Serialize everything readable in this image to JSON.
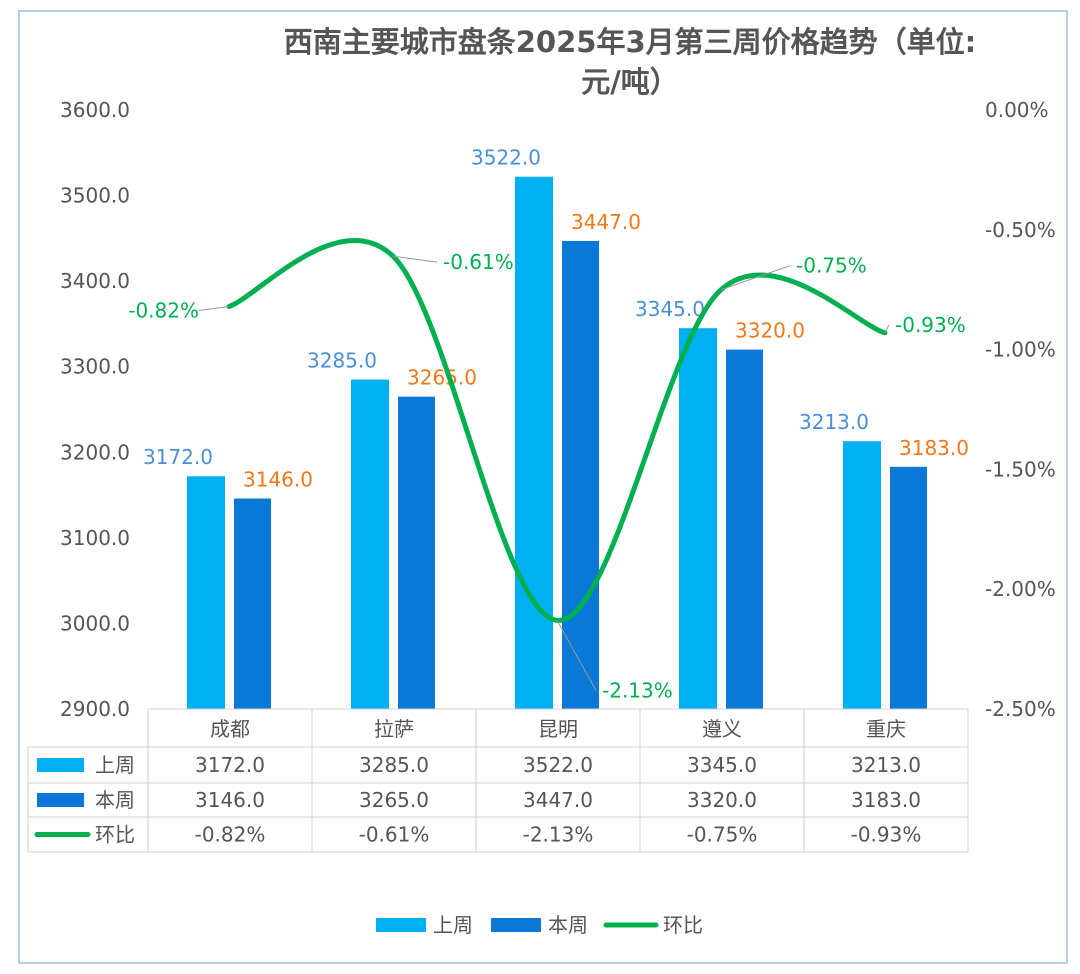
{
  "chart_data": {
    "type": "bar",
    "title_line1": "西南主要城市盘条2025年3月第三周价格趋势（单位:",
    "title_line2": "元/吨）",
    "categories": [
      "成都",
      "拉萨",
      "昆明",
      "遵义",
      "重庆"
    ],
    "series": [
      {
        "name": "上周",
        "type": "bar",
        "axis": "left",
        "color": "#00b0f0",
        "values": [
          3172.0,
          3285.0,
          3522.0,
          3345.0,
          3213.0
        ],
        "labels": [
          "3172.0",
          "3285.0",
          "3522.0",
          "3345.0",
          "3213.0"
        ],
        "label_color": "#4a8fd8"
      },
      {
        "name": "本周",
        "type": "bar",
        "axis": "left",
        "color": "#0a78d6",
        "values": [
          3146.0,
          3265.0,
          3447.0,
          3320.0,
          3183.0
        ],
        "labels": [
          "3146.0",
          "3265.0",
          "3447.0",
          "3320.0",
          "3183.0"
        ],
        "label_color": "#f07818"
      },
      {
        "name": "环比",
        "type": "line",
        "axis": "right",
        "color": "#00b050",
        "values": [
          -0.82,
          -0.61,
          -2.13,
          -0.75,
          -0.93
        ],
        "labels": [
          "-0.82%",
          "-0.61%",
          "-2.13%",
          "-0.75%",
          "-0.93%"
        ],
        "label_color": "#00b050"
      }
    ],
    "left_axis": {
      "ylim": [
        2900,
        3600
      ],
      "ticks": [
        "2900.0",
        "3000.0",
        "3100.0",
        "3200.0",
        "3300.0",
        "3400.0",
        "3500.0",
        "3600.0"
      ]
    },
    "right_axis": {
      "ylim": [
        -2.5,
        0
      ],
      "ticks": [
        "-2.50%",
        "-2.00%",
        "-1.50%",
        "-1.00%",
        "-0.50%",
        "0.00%"
      ]
    },
    "grid": false,
    "data_table": true,
    "legend_position": "bottom",
    "legend": [
      "上周",
      "本周",
      "环比"
    ]
  }
}
